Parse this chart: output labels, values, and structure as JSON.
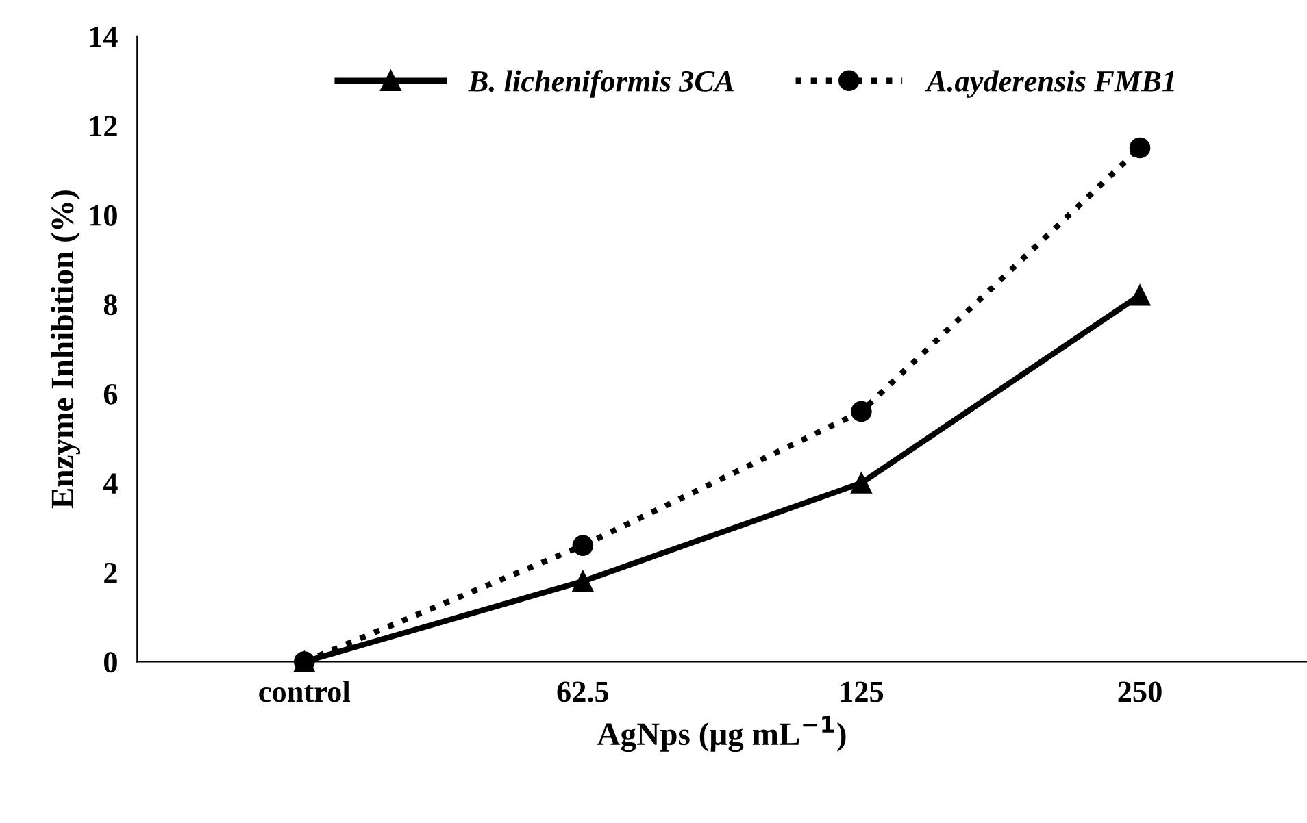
{
  "chart_data": {
    "type": "line",
    "xlabel": "AgNps (μg mL$^{−1}$)",
    "ylabel": "Enzyme Inhibition (%)",
    "categories": [
      "control",
      "62.5",
      "125",
      "250"
    ],
    "series": [
      {
        "name": "B. licheniformis 3CA",
        "color": "#000000",
        "values": [
          0,
          1.8,
          4.0,
          8.2
        ],
        "marker": "triangle",
        "line_style": "solid"
      },
      {
        "name": "A.ayderensis FMB1",
        "color": "#000000",
        "values": [
          0,
          2.6,
          5.6,
          11.5
        ],
        "marker": "circle",
        "line_style": "dotted"
      }
    ],
    "ylim": [
      0,
      14
    ],
    "yticks": [
      0,
      2,
      4,
      6,
      8,
      10,
      12,
      14
    ],
    "grid": false,
    "legend": "top"
  }
}
